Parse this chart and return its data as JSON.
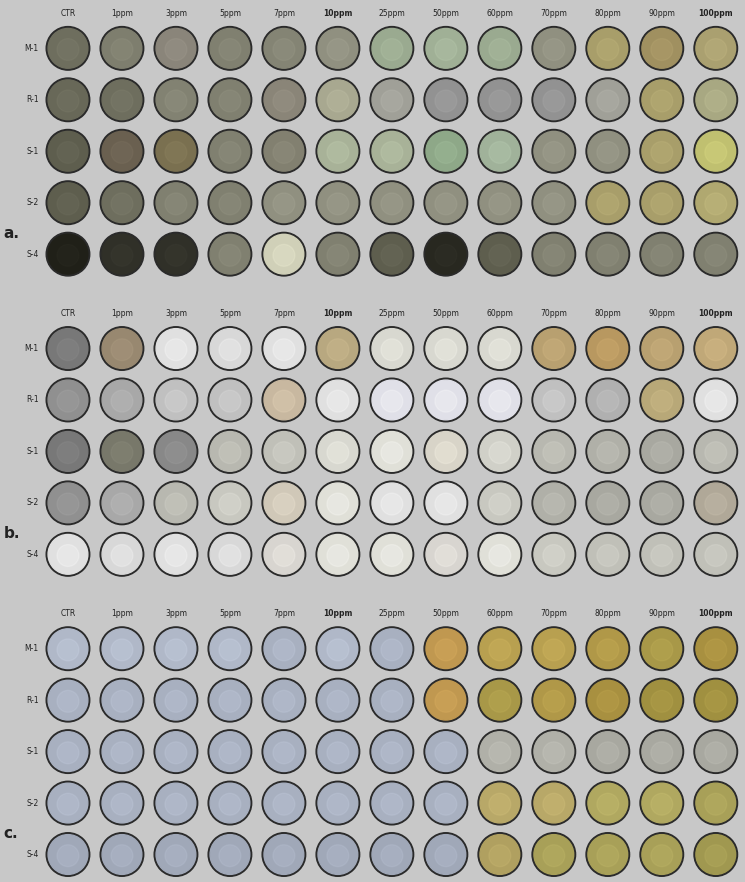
{
  "panels": [
    "a",
    "b",
    "c"
  ],
  "col_labels": [
    "CTR",
    "1ppm",
    "3ppm",
    "5ppm",
    "7ppm",
    "10ppm",
    "25ppm",
    "50ppm",
    "60ppm",
    "70ppm",
    "80ppm",
    "90ppm",
    "100ppm"
  ],
  "row_labels": [
    "M-1",
    "R-1",
    "S-1",
    "S-2",
    "S-4"
  ],
  "fig_bg": "#c8c8c8",
  "panel_bg": "#111111",
  "label_color": "#222222",
  "panel_label_fontsize": 11,
  "col_label_fontsize": 5.5,
  "row_label_fontsize": 5.5,
  "panel_a_dishes": [
    [
      "#6e6e5e",
      "#7e7e6e",
      "#8a857a",
      "#808070",
      "#848474",
      "#909080",
      "#9aaa90",
      "#a0b096",
      "#9aaa90",
      "#909080",
      "#a89e6a",
      "#a09060",
      "#aaa070"
    ],
    [
      "#686858",
      "#6e6e5e",
      "#828272",
      "#808070",
      "#8a8578",
      "#a8a890",
      "#a0a098",
      "#929292",
      "#929292",
      "#929292",
      "#a0a098",
      "#a89e6a",
      "#a8a882"
    ],
    [
      "#5e5e4e",
      "#6a6050",
      "#7a7050",
      "#808070",
      "#828070",
      "#a8b298",
      "#a8b298",
      "#8ea888",
      "#a0b29a",
      "#909080",
      "#909080",
      "#a89e6a",
      "#c0c070"
    ],
    [
      "#5e5e4e",
      "#6e6e5e",
      "#808070",
      "#808070",
      "#909080",
      "#909080",
      "#909080",
      "#909080",
      "#909080",
      "#909080",
      "#a89e6a",
      "#a89e6a",
      "#b0a870"
    ],
    [
      "#202018",
      "#303028",
      "#303028",
      "#808070",
      "#d0d0b8",
      "#808070",
      "#5e5e4e",
      "#282820",
      "#5e5e4e",
      "#808070",
      "#808070",
      "#808070",
      "#808070"
    ]
  ],
  "panel_b_dishes": [
    [
      "#787878",
      "#988870",
      "#e0e0e0",
      "#d8d8d8",
      "#e0e0e0",
      "#b8a880",
      "#d8d8d0",
      "#d8d8d0",
      "#d8d8d0",
      "#b8a070",
      "#b89860",
      "#b8a070",
      "#c0a878"
    ],
    [
      "#909090",
      "#a8a8a8",
      "#c0c0c0",
      "#c0c0c0",
      "#c8b8a0",
      "#e0e0e0",
      "#e0e0e8",
      "#e0e0e8",
      "#e0e0e8",
      "#c0c0c0",
      "#b0b0b0",
      "#b8a878",
      "#e0e0e0"
    ],
    [
      "#787878",
      "#78786a",
      "#888888",
      "#b8b8b0",
      "#c0c0b8",
      "#d8d8d0",
      "#e0e0d8",
      "#d8d4c8",
      "#d0d0c8",
      "#b8b8b0",
      "#b0b0a8",
      "#a8a8a0",
      "#b8b8b0"
    ],
    [
      "#909090",
      "#a8a8a8",
      "#b8b8b0",
      "#c8c8c0",
      "#d0c8b8",
      "#e0e0d8",
      "#e0e0e0",
      "#e0e0e0",
      "#c8c8c0",
      "#b0b0a8",
      "#a8a8a0",
      "#a8a8a0",
      "#b0a898"
    ],
    [
      "#e0e0e0",
      "#d8d8d8",
      "#e0e0e0",
      "#d8d8d8",
      "#d8d5d0",
      "#e0e0d8",
      "#e0e0d8",
      "#d8d5d0",
      "#e0e0d8",
      "#c8c8c0",
      "#c0c0b8",
      "#c0c0b8",
      "#c0c0b8"
    ]
  ],
  "panel_c_dishes": [
    [
      "#b0b8c8",
      "#b0b8c8",
      "#b0b8c8",
      "#b0b8c8",
      "#a8b0c0",
      "#b0b8c8",
      "#a8b0c0",
      "#c09850",
      "#b8a050",
      "#b8a050",
      "#b09848",
      "#a89848",
      "#a89040"
    ],
    [
      "#a8b0c0",
      "#a8b0c0",
      "#a8b0c0",
      "#a8b0c0",
      "#a8b0c0",
      "#a8b0c0",
      "#a8b0c0",
      "#c09850",
      "#a89848",
      "#b09848",
      "#a89040",
      "#a09040",
      "#a09040"
    ],
    [
      "#a8b0c0",
      "#a8b0c0",
      "#a8b0c0",
      "#a8b0c0",
      "#a8b0c0",
      "#a8b0c0",
      "#a8b0c0",
      "#a8b0c0",
      "#b0b0a8",
      "#b0b0a8",
      "#a8a8a0",
      "#a8a8a0",
      "#a8a8a0"
    ],
    [
      "#a8b0c0",
      "#a8b0c0",
      "#a8b0c0",
      "#a8b0c0",
      "#a8b0c0",
      "#a8b0c0",
      "#a8b0c0",
      "#a8b0c0",
      "#b8a868",
      "#b8a868",
      "#b0a860",
      "#b0a860",
      "#a8a058"
    ],
    [
      "#a0a8b8",
      "#a0a8b8",
      "#a0a8b8",
      "#a0a8b8",
      "#a0a8b8",
      "#a0a8b8",
      "#a0a8b8",
      "#a0a8b8",
      "#b0a060",
      "#a8a058",
      "#a8a058",
      "#a8a058",
      "#a09850"
    ]
  ]
}
